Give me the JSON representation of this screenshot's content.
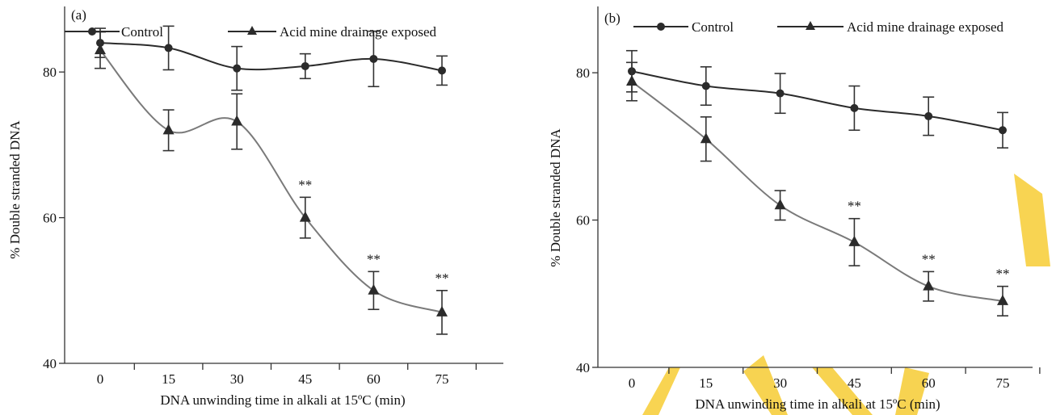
{
  "colors": {
    "control": "#2b2b2b",
    "exposed": "#7a7a7a",
    "watermark": "#f7cf3f"
  },
  "chart_data": [
    {
      "type": "line",
      "panel_label": "(a)",
      "xlabel": "DNA unwinding time in alkali at 15ºC (min)",
      "ylabel": "% Double stranded DNA",
      "x": [
        0,
        15,
        30,
        45,
        60,
        75
      ],
      "x_tick_labels": [
        "0",
        "15",
        "30",
        "45",
        "60",
        "75"
      ],
      "yticks": [
        40,
        60,
        80
      ],
      "ylim": [
        40,
        89
      ],
      "series": [
        {
          "name": "Control",
          "marker": "circle",
          "values": [
            84,
            83.3,
            80.5,
            80.8,
            81.8,
            80.2
          ],
          "errors": [
            2.0,
            3.0,
            3.0,
            1.7,
            3.8,
            2.0
          ]
        },
        {
          "name": "Acid mine drainage exposed",
          "marker": "triangle",
          "values": [
            83,
            72,
            73.2,
            60,
            50,
            47
          ],
          "errors": [
            2.5,
            2.8,
            3.8,
            2.8,
            2.6,
            3.0
          ]
        }
      ],
      "annotations": [
        {
          "x": 45,
          "text": "**"
        },
        {
          "x": 60,
          "text": "**"
        },
        {
          "x": 75,
          "text": "**"
        }
      ],
      "legend_position": "top"
    },
    {
      "type": "line",
      "panel_label": "(b)",
      "xlabel": "DNA unwinding time in alkali at 15ºC (min)",
      "ylabel": "% Double stranded DNA",
      "x": [
        0,
        15,
        30,
        45,
        60,
        75
      ],
      "x_tick_labels": [
        "0",
        "15",
        "30",
        "45",
        "60",
        "75"
      ],
      "yticks": [
        40,
        60,
        80
      ],
      "ylim": [
        40,
        89
      ],
      "series": [
        {
          "name": "Control",
          "marker": "circle",
          "values": [
            80.2,
            78.2,
            77.2,
            75.2,
            74.1,
            72.2
          ],
          "errors": [
            2.8,
            2.6,
            2.7,
            3.0,
            2.6,
            2.4
          ]
        },
        {
          "name": "Acid mine drainage exposed",
          "marker": "triangle",
          "values": [
            78.8,
            71.0,
            62.0,
            57.0,
            51.0,
            49.0
          ],
          "errors": [
            2.6,
            3.0,
            2.0,
            3.2,
            2.0,
            2.0
          ]
        }
      ],
      "annotations": [
        {
          "x": 45,
          "text": "**"
        },
        {
          "x": 60,
          "text": "**"
        },
        {
          "x": 75,
          "text": "**"
        }
      ],
      "legend_position": "top"
    }
  ]
}
